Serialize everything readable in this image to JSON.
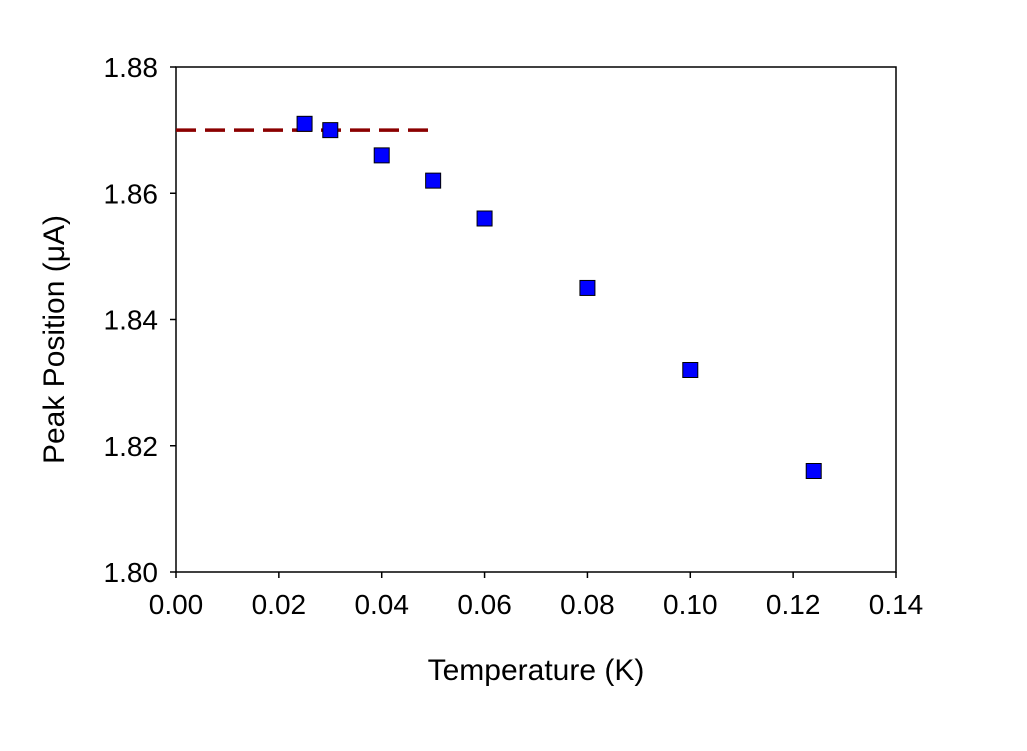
{
  "chart_data": {
    "type": "scatter",
    "title": "",
    "xlabel": "Temperature  (K)",
    "ylabel": "Peak Position  (μA)",
    "xlim": [
      0.0,
      0.14
    ],
    "ylim": [
      1.8,
      1.88
    ],
    "x_ticks": [
      "0.00",
      "0.02",
      "0.04",
      "0.06",
      "0.08",
      "0.10",
      "0.12",
      "0.14"
    ],
    "y_ticks": [
      "1.80",
      "1.82",
      "1.84",
      "1.86",
      "1.88"
    ],
    "grid": false,
    "legend": "none",
    "series": [
      {
        "marker": "square",
        "color": "#0000ff",
        "x": [
          0.025,
          0.03,
          0.04,
          0.05,
          0.06,
          0.08,
          0.1,
          0.124
        ],
        "y": [
          1.871,
          1.87,
          1.866,
          1.862,
          1.856,
          1.845,
          1.832,
          1.816
        ]
      }
    ],
    "reference_line": {
      "style": "dashed",
      "color": "#8b0000",
      "x": [
        0.0,
        0.05
      ],
      "y": [
        1.87,
        1.87
      ]
    }
  }
}
